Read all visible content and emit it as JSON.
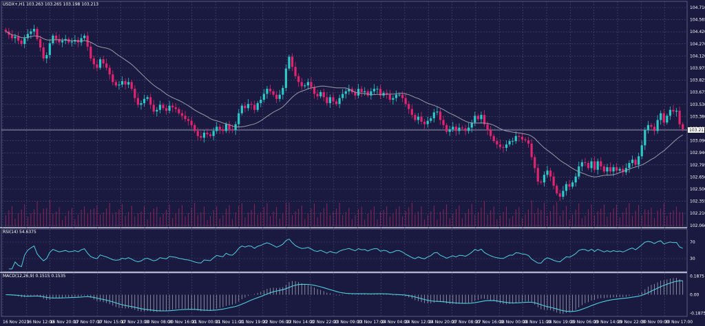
{
  "symbol_header": "USDX+,H1  103.263 103.265 103.198 103.213",
  "colors": {
    "background": "#1a1a40",
    "grid": "#4d4d7a",
    "bull": "#2ec8c8",
    "bear": "#e0246e",
    "ma": "#9a9aa8",
    "text": "#ffffff",
    "last_price_bg": "#ffffff",
    "rsi": "#4fd0e0",
    "macd": "#4fd0e0",
    "hist": "#b8b8c4",
    "volume": "#a8285e"
  },
  "price_axis": {
    "ticks": [
      "104.710",
      "104.565",
      "104.420",
      "104.270",
      "104.120",
      "103.975",
      "103.825",
      "103.675",
      "103.530",
      "103.380",
      "103.235",
      "103.090",
      "102.940",
      "102.795",
      "102.650",
      "102.500",
      "102.355",
      "102.210",
      "102.060"
    ],
    "last_price": "103.213"
  },
  "rsi_panel": {
    "label": "RSI(14) 54.6375",
    "ticks": [
      "70",
      "30"
    ]
  },
  "macd_panel": {
    "label": "MACD(12,26,9) 0.1515 0.1535",
    "ticks": [
      "0.1875",
      "0.00",
      "-0.1875"
    ]
  },
  "time_axis": [
    "16 Nov 2023",
    "16 Nov 12:00",
    "16 Nov 20:00",
    "17 Nov 07:00",
    "17 Nov 15:00",
    "17 Nov 23:00",
    "20 Nov 08:00",
    "20 Nov 16:00",
    "21 Nov 00:00",
    "21 Nov 11:00",
    "21 Nov 19:00",
    "22 Nov 06:00",
    "22 Nov 14:00",
    "22 Nov 22:00",
    "23 Nov 09:00",
    "23 Nov 17:00",
    "24 Nov 04:00",
    "24 Nov 12:00",
    "24 Nov 20:00",
    "27 Nov 08:00",
    "27 Nov 16:00",
    "28 Nov 00:00",
    "28 Nov 11:00",
    "28 Nov 19:00",
    "29 Nov 06:00",
    "29 Nov 14:00",
    "29 Nov 22:00",
    "30 Nov 09:00",
    "30 Nov 17:00"
  ],
  "chart_data": {
    "type": "candlestick",
    "ylim": [
      102.06,
      104.71
    ],
    "closes": [
      104.37,
      104.33,
      104.29,
      104.31,
      104.26,
      104.22,
      104.29,
      104.34,
      104.37,
      104.4,
      104.28,
      104.18,
      104.05,
      104.09,
      104.23,
      104.32,
      104.28,
      104.24,
      104.26,
      104.28,
      104.24,
      104.25,
      104.27,
      104.24,
      104.29,
      104.32,
      104.19,
      104.05,
      103.98,
      103.94,
      104.04,
      103.99,
      103.94,
      103.86,
      103.77,
      103.73,
      103.74,
      103.78,
      103.74,
      103.77,
      103.69,
      103.58,
      103.5,
      103.52,
      103.57,
      103.59,
      103.5,
      103.42,
      103.44,
      103.5,
      103.46,
      103.43,
      103.49,
      103.47,
      103.45,
      103.4,
      103.37,
      103.33,
      103.31,
      103.26,
      103.19,
      103.13,
      103.11,
      103.17,
      103.15,
      103.13,
      103.19,
      103.24,
      103.21,
      103.19,
      103.27,
      103.21,
      103.2,
      103.27,
      103.4,
      103.49,
      103.46,
      103.51,
      103.5,
      103.44,
      103.52,
      103.56,
      103.63,
      103.69,
      103.66,
      103.62,
      103.57,
      103.62,
      103.7,
      103.93,
      104.07,
      103.95,
      103.84,
      103.77,
      103.72,
      103.73,
      103.77,
      103.71,
      103.63,
      103.6,
      103.65,
      103.59,
      103.52,
      103.59,
      103.54,
      103.51,
      103.58,
      103.63,
      103.66,
      103.69,
      103.65,
      103.61,
      103.69,
      103.65,
      103.66,
      103.61,
      103.66,
      103.69,
      103.69,
      103.61,
      103.64,
      103.62,
      103.56,
      103.58,
      103.62,
      103.62,
      103.58,
      103.51,
      103.45,
      103.38,
      103.32,
      103.36,
      103.3,
      103.27,
      103.31,
      103.34,
      103.41,
      103.42,
      103.32,
      103.26,
      103.18,
      103.21,
      103.24,
      103.19,
      103.23,
      103.22,
      103.19,
      103.23,
      103.29,
      103.37,
      103.33,
      103.38,
      103.27,
      103.2,
      103.13,
      103.07,
      103.03,
      103.0,
      102.99,
      103.03,
      103.07,
      103.07,
      103.13,
      103.12,
      103.09,
      103.08,
      103.04,
      102.88,
      102.75,
      102.59,
      102.58,
      102.67,
      102.72,
      102.65,
      102.54,
      102.45,
      102.41,
      102.48,
      102.56,
      102.53,
      102.58,
      102.65,
      102.77,
      102.82,
      102.81,
      102.75,
      102.83,
      102.73,
      102.83,
      102.77,
      102.71,
      102.76,
      102.71,
      102.76,
      102.72,
      102.74,
      102.7,
      102.75,
      102.81,
      102.85,
      102.79,
      102.89,
      103.02,
      103.2,
      103.26,
      103.24,
      103.19,
      103.32,
      103.4,
      103.29,
      103.37,
      103.44,
      103.42,
      103.43,
      103.27,
      103.21
    ]
  }
}
